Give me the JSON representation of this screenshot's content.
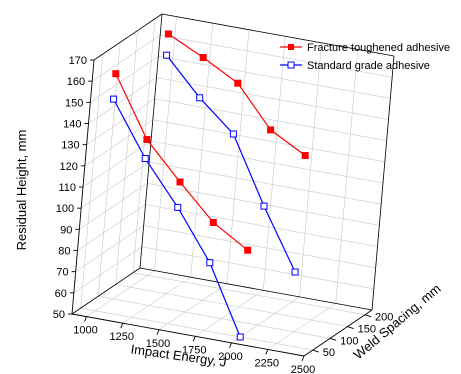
{
  "chart_data": {
    "type": "line",
    "projection": "3d",
    "title": "",
    "xlabel": "Impact Energy, J",
    "ylabel": "Weld Spacing, mm",
    "zlabel": "Residual Height, mm",
    "xlim": [
      900,
      2500
    ],
    "ylim": [
      25,
      220
    ],
    "zlim": [
      50,
      170
    ],
    "xticks": [
      1000,
      1250,
      1500,
      1750,
      2000,
      2250,
      2500
    ],
    "yticks": [
      50,
      100,
      150,
      200
    ],
    "zticks": [
      50,
      60,
      70,
      80,
      90,
      100,
      110,
      120,
      130,
      140,
      150,
      160,
      170
    ],
    "grid": true,
    "legend_position": "top-right",
    "series": [
      {
        "name": "Fracture toughened adhesive",
        "color": "#ff0000",
        "marker": "filled-square",
        "lines": [
          {
            "y": 50,
            "x": [
              1000,
              1250,
              1500,
              1750,
              2000
            ],
            "z": [
              162,
              134,
              117,
              101,
              91
            ]
          },
          {
            "y": 200,
            "x": [
              1000,
              1250,
              1500,
              1750,
              2000
            ],
            "z": [
              164,
              156,
              147,
              128,
              119
            ]
          }
        ]
      },
      {
        "name": "Standard grade adhesive",
        "color": "#0000ff",
        "marker": "open-square",
        "lines": [
          {
            "y": 50,
            "x": [
              1000,
              1250,
              1500,
              1750,
              2000
            ],
            "z": [
              150,
              125,
              105,
              82,
              50
            ]
          },
          {
            "y": 200,
            "x": [
              1000,
              1250,
              1500,
              1750,
              2000
            ],
            "z": [
              154,
              137,
              123,
              92,
              64
            ]
          }
        ]
      }
    ]
  }
}
